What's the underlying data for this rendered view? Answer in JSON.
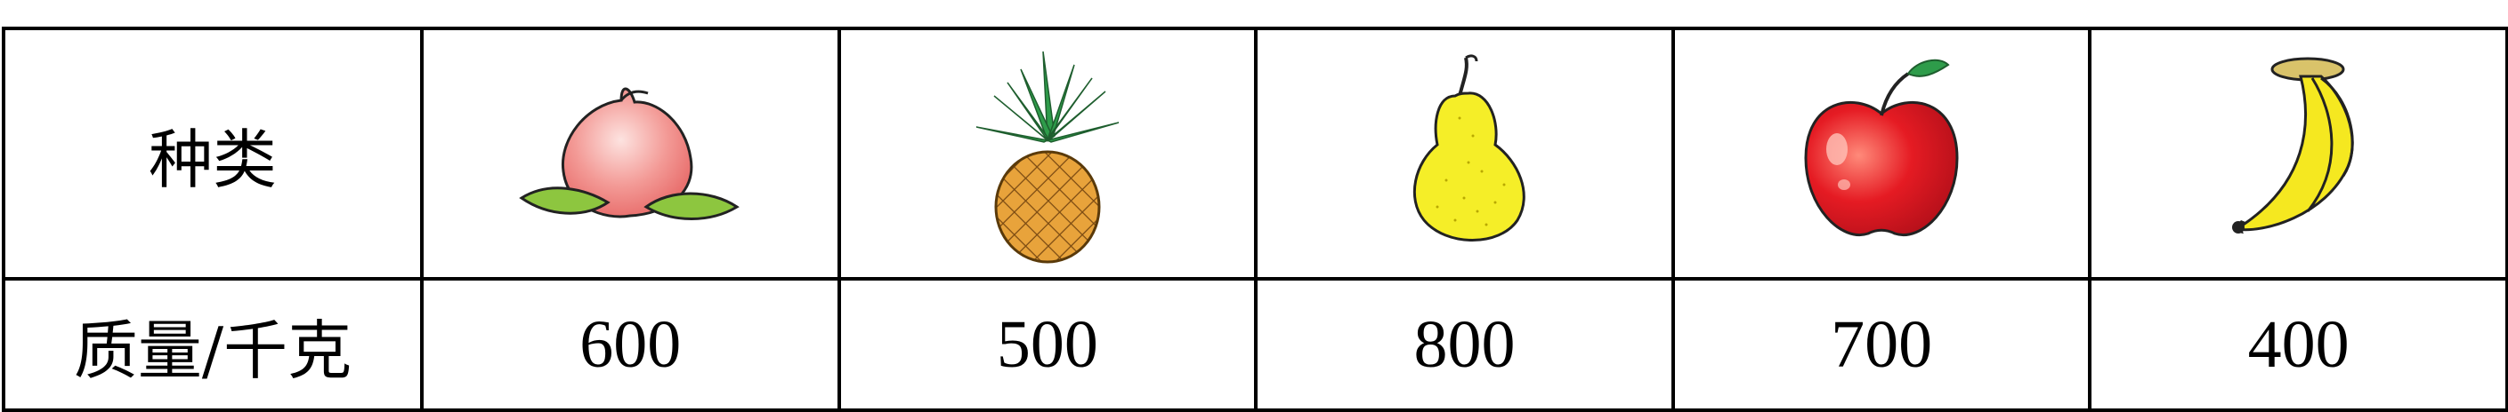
{
  "table": {
    "row_kind_label": "种类",
    "row_mass_label": "质量/千克",
    "columns": [
      {
        "fruit_icon": "peach-icon",
        "mass": "600"
      },
      {
        "fruit_icon": "pineapple-icon",
        "mass": "500"
      },
      {
        "fruit_icon": "pear-icon",
        "mass": "800"
      },
      {
        "fruit_icon": "apple-icon",
        "mass": "700"
      },
      {
        "fruit_icon": "banana-icon",
        "mass": "400"
      }
    ]
  }
}
